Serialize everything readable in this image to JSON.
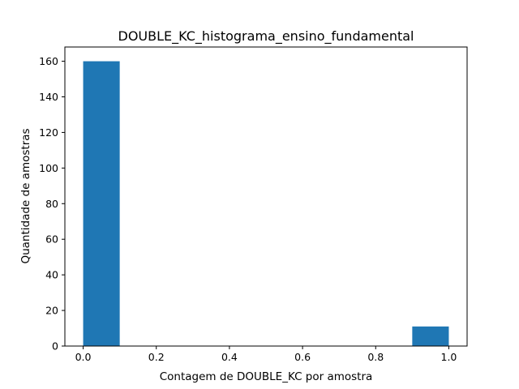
{
  "chart_data": {
    "type": "bar",
    "title": "DOUBLE_KC_histograma_ensino_fundamental",
    "xlabel": "Contagem de DOUBLE_KC por amostra",
    "ylabel": "Quantidade de amostras",
    "xlim": [
      -0.05,
      1.05
    ],
    "ylim": [
      0,
      168
    ],
    "xticks": [
      0.0,
      0.2,
      0.4,
      0.6,
      0.8,
      1.0
    ],
    "xtick_labels": [
      "0.0",
      "0.2",
      "0.4",
      "0.6",
      "0.8",
      "1.0"
    ],
    "yticks": [
      0,
      20,
      40,
      60,
      80,
      100,
      120,
      140,
      160
    ],
    "ytick_labels": [
      "0",
      "20",
      "40",
      "60",
      "80",
      "100",
      "120",
      "140",
      "160"
    ],
    "bins": [
      {
        "x0": 0.0,
        "x1": 0.1,
        "value": 160
      },
      {
        "x0": 0.1,
        "x1": 0.2,
        "value": 0
      },
      {
        "x0": 0.2,
        "x1": 0.3,
        "value": 0
      },
      {
        "x0": 0.3,
        "x1": 0.4,
        "value": 0
      },
      {
        "x0": 0.4,
        "x1": 0.5,
        "value": 0
      },
      {
        "x0": 0.5,
        "x1": 0.6,
        "value": 0
      },
      {
        "x0": 0.6,
        "x1": 0.7,
        "value": 0
      },
      {
        "x0": 0.7,
        "x1": 0.8,
        "value": 0
      },
      {
        "x0": 0.8,
        "x1": 0.9,
        "value": 0
      },
      {
        "x0": 0.9,
        "x1": 1.0,
        "value": 11
      }
    ],
    "bar_color": "#1f77b4",
    "grid": false,
    "legend": "none"
  }
}
